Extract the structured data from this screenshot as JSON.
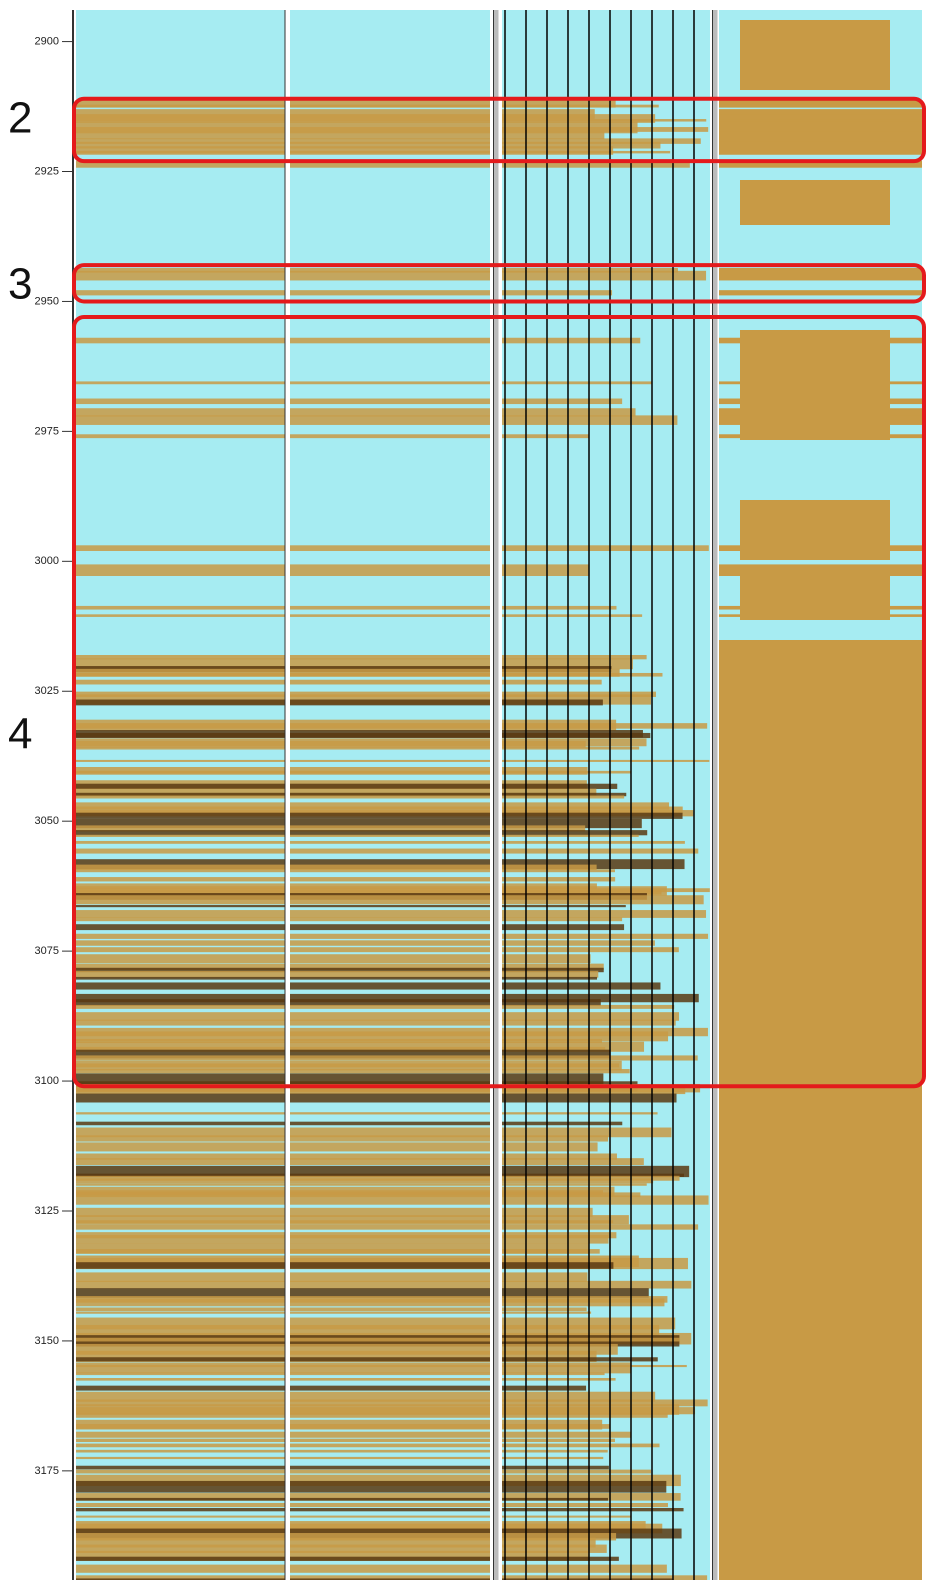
{
  "chart_data": {
    "type": "well-log",
    "ylim": [
      2892,
      3196
    ],
    "inverted": true,
    "yticks": [
      2900,
      2925,
      2950,
      2975,
      3000,
      3025,
      3050,
      3075,
      3100,
      3125,
      3150,
      3175
    ],
    "zones": [
      {
        "label": "2",
        "top": 2911,
        "bottom": 2923
      },
      {
        "label": "3",
        "top": 2943,
        "bottom": 2950
      },
      {
        "label": "4",
        "top": 2953,
        "bottom": 3101
      }
    ],
    "zone_color": "#e41a1c"
  }
}
